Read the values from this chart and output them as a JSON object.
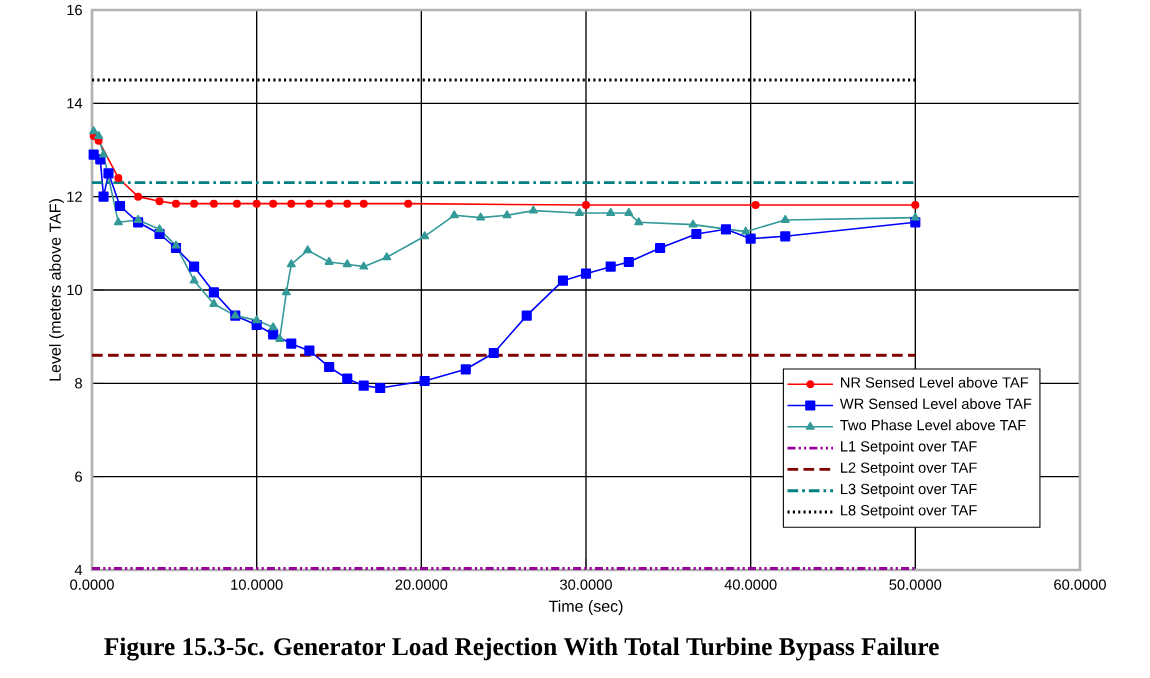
{
  "chart_data": {
    "type": "line",
    "title": "Figure 15.3-5c.  Generator Load Rejection With Total Turbine Bypass Failure",
    "xlabel": "Time (sec)",
    "ylabel": "Level (meters above TAF)",
    "xlim": [
      0,
      60
    ],
    "ylim": [
      4,
      16
    ],
    "xticks": [
      {
        "value": 0,
        "label": "0.0000"
      },
      {
        "value": 10,
        "label": "10.0000"
      },
      {
        "value": 20,
        "label": "20.0000"
      },
      {
        "value": 30,
        "label": "30.0000"
      },
      {
        "value": 40,
        "label": "40.0000"
      },
      {
        "value": 50,
        "label": "50.0000"
      },
      {
        "value": 60,
        "label": "60.0000"
      }
    ],
    "yticks": [
      4,
      6,
      8,
      10,
      12,
      14,
      16
    ],
    "grid": true,
    "legend": "right",
    "series": [
      {
        "name": "NR Sensed Level above TAF",
        "color": "#ff0000",
        "marker": "circle",
        "line_style": "solid",
        "x": [
          0.1,
          0.4,
          1.6,
          2.8,
          4.1,
          5.1,
          6.2,
          7.4,
          8.8,
          10,
          11,
          12.1,
          13.2,
          14.4,
          15.5,
          16.5,
          19.2,
          30,
          40.3,
          50
        ],
        "values": [
          13.3,
          13.2,
          12.4,
          12.0,
          11.9,
          11.85,
          11.85,
          11.85,
          11.85,
          11.85,
          11.85,
          11.85,
          11.85,
          11.85,
          11.85,
          11.85,
          11.85,
          11.82,
          11.82,
          11.82
        ]
      },
      {
        "name": "WR Sensed Level above TAF",
        "color": "#0000ff",
        "marker": "square",
        "line_style": "solid",
        "x": [
          0.1,
          0.5,
          0.7,
          1.0,
          1.7,
          2.8,
          4.1,
          5.1,
          6.2,
          7.4,
          8.7,
          10,
          11,
          12.1,
          13.2,
          14.4,
          15.5,
          16.5,
          17.5,
          20.2,
          22.7,
          24.4,
          26.4,
          28.6,
          30,
          31.5,
          32.6,
          34.5,
          36.7,
          38.5,
          40,
          42.1,
          50
        ],
        "values": [
          12.9,
          12.8,
          12.0,
          12.5,
          11.8,
          11.45,
          11.2,
          10.9,
          10.5,
          9.95,
          9.45,
          9.25,
          9.05,
          8.85,
          8.7,
          8.35,
          8.1,
          7.95,
          7.9,
          8.05,
          8.3,
          8.65,
          9.45,
          10.2,
          10.35,
          10.5,
          10.6,
          10.9,
          11.2,
          11.3,
          11.1,
          11.15,
          11.45
        ]
      },
      {
        "name": "Two Phase Level above TAF",
        "color": "#339999",
        "marker": "triangle",
        "line_style": "solid",
        "x": [
          0.1,
          0.4,
          0.7,
          1.6,
          2.8,
          4.1,
          5.1,
          6.2,
          7.4,
          8.7,
          10,
          11,
          11.4,
          11.8,
          12.1,
          13.1,
          14.4,
          15.5,
          16.5,
          17.9,
          20.2,
          22,
          23.6,
          25.2,
          26.8,
          29.6,
          31.5,
          32.6,
          33.2,
          36.5,
          39.7,
          42.1,
          50
        ],
        "values": [
          13.4,
          13.3,
          12.9,
          11.45,
          11.5,
          11.3,
          10.95,
          10.2,
          9.7,
          9.45,
          9.35,
          9.2,
          8.95,
          9.95,
          10.55,
          10.85,
          10.6,
          10.55,
          10.5,
          10.7,
          11.15,
          11.6,
          11.55,
          11.6,
          11.7,
          11.65,
          11.65,
          11.65,
          11.45,
          11.4,
          11.25,
          11.5,
          11.55
        ]
      },
      {
        "name": "L1 Setpoint over TAF",
        "color": "#990099",
        "marker": "none",
        "line_style": "dashdotdot",
        "x": [
          0,
          50
        ],
        "values": [
          4.03,
          4.03
        ]
      },
      {
        "name": "L2 Setpoint over TAF",
        "color": "#800000",
        "marker": "none",
        "line_style": "dashed",
        "x": [
          0,
          50
        ],
        "values": [
          8.6,
          8.6
        ]
      },
      {
        "name": "L3 Setpoint over TAF",
        "color": "#008080",
        "marker": "none",
        "line_style": "dashdot",
        "x": [
          0,
          50
        ],
        "values": [
          12.3,
          12.3
        ]
      },
      {
        "name": "L8 Setpoint over TAF",
        "color": "#000000",
        "marker": "none",
        "line_style": "dotted",
        "x": [
          0,
          50
        ],
        "values": [
          14.5,
          14.5
        ]
      }
    ]
  }
}
